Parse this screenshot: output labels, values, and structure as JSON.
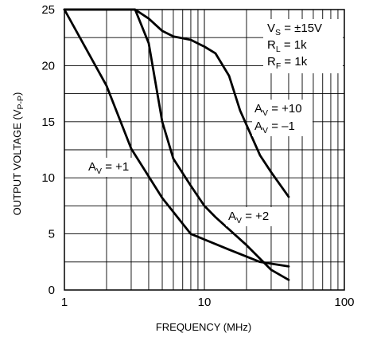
{
  "chart_data": {
    "type": "line",
    "xscale": "log",
    "xlim": [
      1,
      100
    ],
    "ylim": [
      0,
      25
    ],
    "grid": true,
    "xlabel": "FREQUENCY (MHz)",
    "ylabel_main": "OUTPUT VOLTAGE (V",
    "ylabel_sub": "P-P",
    "ylabel_close": ")",
    "x_ticks": [
      {
        "value": 1,
        "label": "1"
      },
      {
        "value": 10,
        "label": "10"
      },
      {
        "value": 100,
        "label": "100"
      }
    ],
    "y_ticks": [
      {
        "value": 0,
        "label": "0"
      },
      {
        "value": 5,
        "label": "5"
      },
      {
        "value": 10,
        "label": "10"
      },
      {
        "value": 15,
        "label": "15"
      },
      {
        "value": 20,
        "label": "20"
      },
      {
        "value": 25,
        "label": "25"
      }
    ],
    "conditions": [
      {
        "main": "V",
        "sub": "S",
        "rest": " = ±15V"
      },
      {
        "main": "R",
        "sub": "L",
        "rest": " = 1k"
      },
      {
        "main": "R",
        "sub": "F",
        "rest": " = 1k"
      }
    ],
    "series": [
      {
        "name": "A_V = +1",
        "points": [
          [
            1,
            25
          ],
          [
            2,
            18.2
          ],
          [
            3,
            12.6
          ],
          [
            5,
            8.2
          ],
          [
            8,
            5.0
          ],
          [
            15,
            3.6
          ],
          [
            25,
            2.5
          ],
          [
            40,
            2.1
          ]
        ]
      },
      {
        "name": "A_V = +2",
        "points": [
          [
            1,
            25
          ],
          [
            3.2,
            25
          ],
          [
            4,
            22
          ],
          [
            5,
            15
          ],
          [
            6,
            11.7
          ],
          [
            8,
            9.3
          ],
          [
            10,
            7.5
          ],
          [
            12,
            6.5
          ],
          [
            20,
            4.0
          ],
          [
            30,
            1.8
          ],
          [
            40,
            0.9
          ]
        ]
      },
      {
        "name": "A_V = +10, A_V = -1",
        "points": [
          [
            1,
            25
          ],
          [
            3.2,
            25
          ],
          [
            4,
            24.2
          ],
          [
            5,
            23.1
          ],
          [
            6,
            22.6
          ],
          [
            8,
            22.3
          ],
          [
            10,
            21.7
          ],
          [
            12,
            21.1
          ],
          [
            15,
            19.1
          ],
          [
            18,
            16.0
          ],
          [
            25,
            12.0
          ],
          [
            30,
            10.5
          ],
          [
            40,
            8.3
          ]
        ]
      }
    ],
    "annotations": [
      {
        "id": "av10",
        "main": "A",
        "sub": "V",
        "rest": " = +10"
      },
      {
        "id": "avm1",
        "main": "A",
        "sub": "V",
        "rest": " = –1"
      },
      {
        "id": "av1",
        "main": "A",
        "sub": "V",
        "rest": " = +1"
      },
      {
        "id": "av2",
        "main": "A",
        "sub": "V",
        "rest": " = +2"
      }
    ]
  }
}
